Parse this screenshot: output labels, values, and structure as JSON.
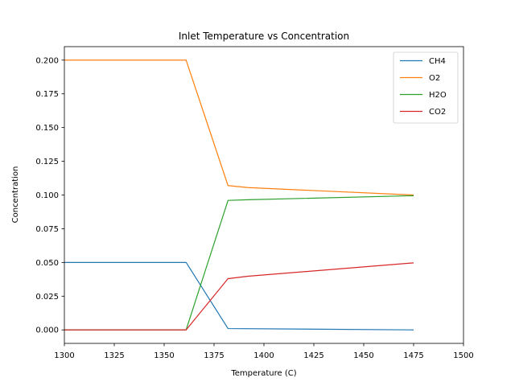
{
  "chart_data": {
    "type": "line",
    "title": "Inlet Temperature vs Concentration",
    "xlabel": "Temperature (C)",
    "ylabel": "Concentration",
    "xlim": [
      1300,
      1500
    ],
    "ylim": [
      -0.01,
      0.21
    ],
    "xticks": [
      1300,
      1325,
      1350,
      1375,
      1400,
      1425,
      1450,
      1475,
      1500
    ],
    "yticks": [
      0.0,
      0.025,
      0.05,
      0.075,
      0.1,
      0.125,
      0.15,
      0.175,
      0.2
    ],
    "xtick_labels": [
      "1300",
      "1325",
      "1350",
      "1375",
      "1400",
      "1425",
      "1450",
      "1475",
      "1500"
    ],
    "ytick_labels": [
      "0.000",
      "0.025",
      "0.050",
      "0.075",
      "0.100",
      "0.125",
      "0.150",
      "0.175",
      "0.200"
    ],
    "grid": false,
    "legend_position": "top-right",
    "series": [
      {
        "name": "CH4",
        "color": "#1f77b4",
        "points": [
          [
            1300,
            0.05
          ],
          [
            1361,
            0.05
          ],
          [
            1382,
            0.001
          ],
          [
            1475,
            0.0
          ]
        ]
      },
      {
        "name": "O2",
        "color": "#ff7f0e",
        "points": [
          [
            1300,
            0.2
          ],
          [
            1361,
            0.2
          ],
          [
            1382,
            0.107
          ],
          [
            1392,
            0.1055
          ],
          [
            1475,
            0.1
          ]
        ]
      },
      {
        "name": "H2O",
        "color": "#2ca02c",
        "points": [
          [
            1300,
            0.0
          ],
          [
            1361,
            0.0
          ],
          [
            1382,
            0.096
          ],
          [
            1392,
            0.0965
          ],
          [
            1475,
            0.0995
          ]
        ]
      },
      {
        "name": "CO2",
        "color": "#d62728",
        "points": [
          [
            1300,
            0.0
          ],
          [
            1361,
            0.0
          ],
          [
            1382,
            0.038
          ],
          [
            1392,
            0.0398
          ],
          [
            1475,
            0.0497
          ]
        ]
      }
    ]
  }
}
